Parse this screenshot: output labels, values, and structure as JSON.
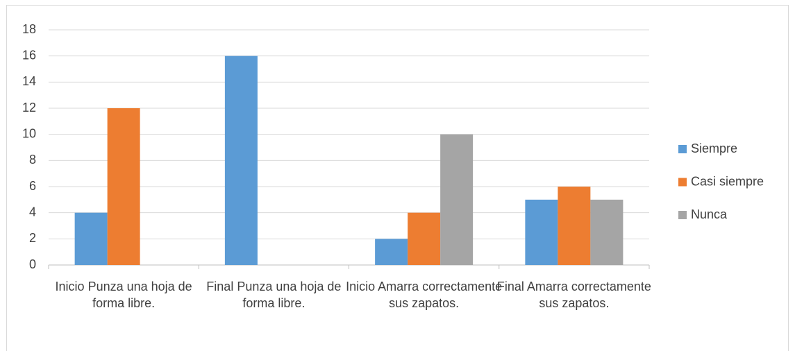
{
  "chart_data": {
    "type": "bar",
    "categories": [
      "Inicio Punza una hoja de forma libre.",
      "Final Punza una hoja de forma libre.",
      "Inicio Amarra correctamente sus zapatos.",
      "Final Amarra correctamente sus zapatos."
    ],
    "series": [
      {
        "name": "Siempre",
        "color": "#5b9bd5",
        "values": [
          4,
          16,
          2,
          5
        ]
      },
      {
        "name": "Casi siempre",
        "color": "#ed7d31",
        "values": [
          12,
          0,
          4,
          6
        ]
      },
      {
        "name": "Nunca",
        "color": "#a5a5a5",
        "values": [
          0,
          0,
          10,
          5
        ]
      }
    ],
    "ylim": [
      0,
      18
    ],
    "yticks": [
      0,
      2,
      4,
      6,
      8,
      10,
      12,
      14,
      16,
      18
    ],
    "grid": true,
    "legend": "right"
  }
}
